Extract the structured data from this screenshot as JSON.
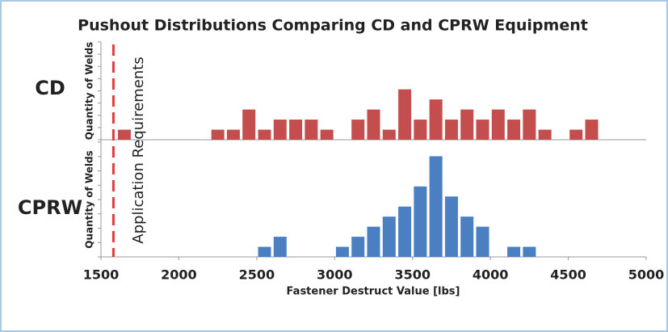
{
  "chart_data": [
    {
      "type": "histogram",
      "title": "Pushout Distributions Comparing CD and CPRW Equipment",
      "name": "CD",
      "ylabel": "Quantity of Welds",
      "color": "#c44e4e",
      "bins": [
        1600,
        1700,
        1800,
        1900,
        2000,
        2100,
        2200,
        2300,
        2400,
        2500,
        2600,
        2700,
        2800,
        2900,
        3000,
        3100,
        3200,
        3300,
        3400,
        3500,
        3600,
        3700,
        3800,
        3900,
        4000,
        4100,
        4200,
        4300,
        4400,
        4500,
        4600,
        4700
      ],
      "counts": [
        1,
        0,
        0,
        0,
        0,
        0,
        1,
        1,
        3,
        1,
        2,
        2,
        2,
        1,
        0,
        2,
        3,
        1,
        5,
        2,
        4,
        2,
        3,
        2,
        3,
        2,
        3,
        1,
        0,
        1,
        2
      ],
      "xlim": [
        1500,
        5000
      ],
      "ylim": [
        0,
        9.7
      ],
      "annotation": {
        "value": 1580,
        "label": "Application Requirements",
        "color": "#e23b3b"
      }
    },
    {
      "type": "histogram",
      "name": "CPRW",
      "ylabel": "Quantity of Welds",
      "color": "#4a7fc1",
      "bins": [
        2500,
        2600,
        2700,
        2800,
        2900,
        3000,
        3100,
        3200,
        3300,
        3400,
        3500,
        3600,
        3700,
        3800,
        3900,
        4000,
        4100,
        4200,
        4300
      ],
      "counts": [
        1,
        2,
        0,
        0,
        0,
        1,
        2,
        3,
        4,
        5,
        7,
        10,
        6,
        4,
        3,
        0,
        1,
        1
      ],
      "xlim": [
        1500,
        5000
      ],
      "ylim": [
        0,
        11.4
      ],
      "xticks": [
        1500,
        2000,
        2500,
        3000,
        3500,
        4000,
        4500,
        5000
      ],
      "xlabel": "Fastener Destruct Value [lbs]"
    }
  ]
}
